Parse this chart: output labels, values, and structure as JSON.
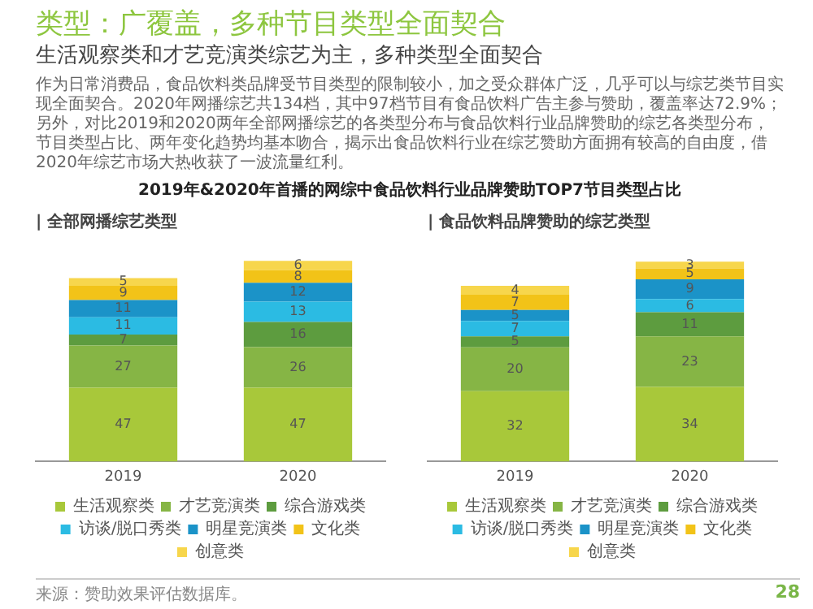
{
  "chart_data": [
    {
      "type": "other",
      "title": "类型：广覆盖，多种节目类型全面契合",
      "subtitle": "生活观察类和才艺竞演类综艺为主，多种类型全面契合",
      "annotations": [
        "作为日常消费品，食品饮料类品牌受节目类型的限制较小，加之受众群体广泛，几乎可以与综艺类节目实现全面契合。2020年网播综艺共134档，其中97档节目有食品饮料广告主参与赞助，覆盖率达72.9%；另外，对比2019和2020两年全部网播综艺的各类型分布与食品饮料行业品牌赞助的综艺各类型分布，节目类型占比、两年变化趋势均基本吻合，揭示出食品饮料行业在综艺赞助方面拥有较高的自由度，借2020年综艺市场大热收获了一波流量红利。",
        "2019年&2020年首播的网综中食品饮料行业品牌赞助TOP7节目类型占比",
        "来源：赞助效果评估数据库。",
        "28"
      ]
    },
    {
      "type": "bar",
      "title": "| 全部网播综艺类型",
      "categories": [
        "2019",
        "2020"
      ],
      "stacked": true,
      "data_labels": true,
      "legend": "bottom",
      "grid": false,
      "series": [
        {
          "name": "生活观察类",
          "color": "#a8c83a",
          "values": [
            47,
            47
          ]
        },
        {
          "name": "才艺竞演类",
          "color": "#86b545",
          "values": [
            27,
            26
          ]
        },
        {
          "name": "综合游戏类",
          "color": "#5d9c3f",
          "values": [
            7,
            16
          ]
        },
        {
          "name": "访谈/脱口秀类",
          "color": "#2bbbe3",
          "values": [
            11,
            13
          ]
        },
        {
          "name": "明星竞演类",
          "color": "#1b93c8",
          "values": [
            11,
            12
          ]
        },
        {
          "name": "文化类",
          "color": "#f2c318",
          "values": [
            9,
            8
          ]
        },
        {
          "name": "创意类",
          "color": "#f7d64c",
          "values": [
            5,
            6
          ]
        }
      ]
    },
    {
      "type": "bar",
      "title": "| 食品饮料品牌赞助的综艺类型",
      "categories": [
        "2019",
        "2020"
      ],
      "stacked": true,
      "data_labels": true,
      "legend": "bottom",
      "grid": false,
      "series": [
        {
          "name": "生活观察类",
          "color": "#a8c83a",
          "values": [
            32,
            34
          ]
        },
        {
          "name": "才艺竞演类",
          "color": "#86b545",
          "values": [
            20,
            23
          ]
        },
        {
          "name": "综合游戏类",
          "color": "#5d9c3f",
          "values": [
            5,
            11
          ]
        },
        {
          "name": "访谈/脱口秀类",
          "color": "#2bbbe3",
          "values": [
            7,
            6
          ]
        },
        {
          "name": "明星竞演类",
          "color": "#1b93c8",
          "values": [
            5,
            9
          ]
        },
        {
          "name": "文化类",
          "color": "#f2c318",
          "values": [
            7,
            5
          ]
        },
        {
          "name": "创意类",
          "color": "#f7d64c",
          "values": [
            4,
            3
          ]
        }
      ]
    }
  ]
}
